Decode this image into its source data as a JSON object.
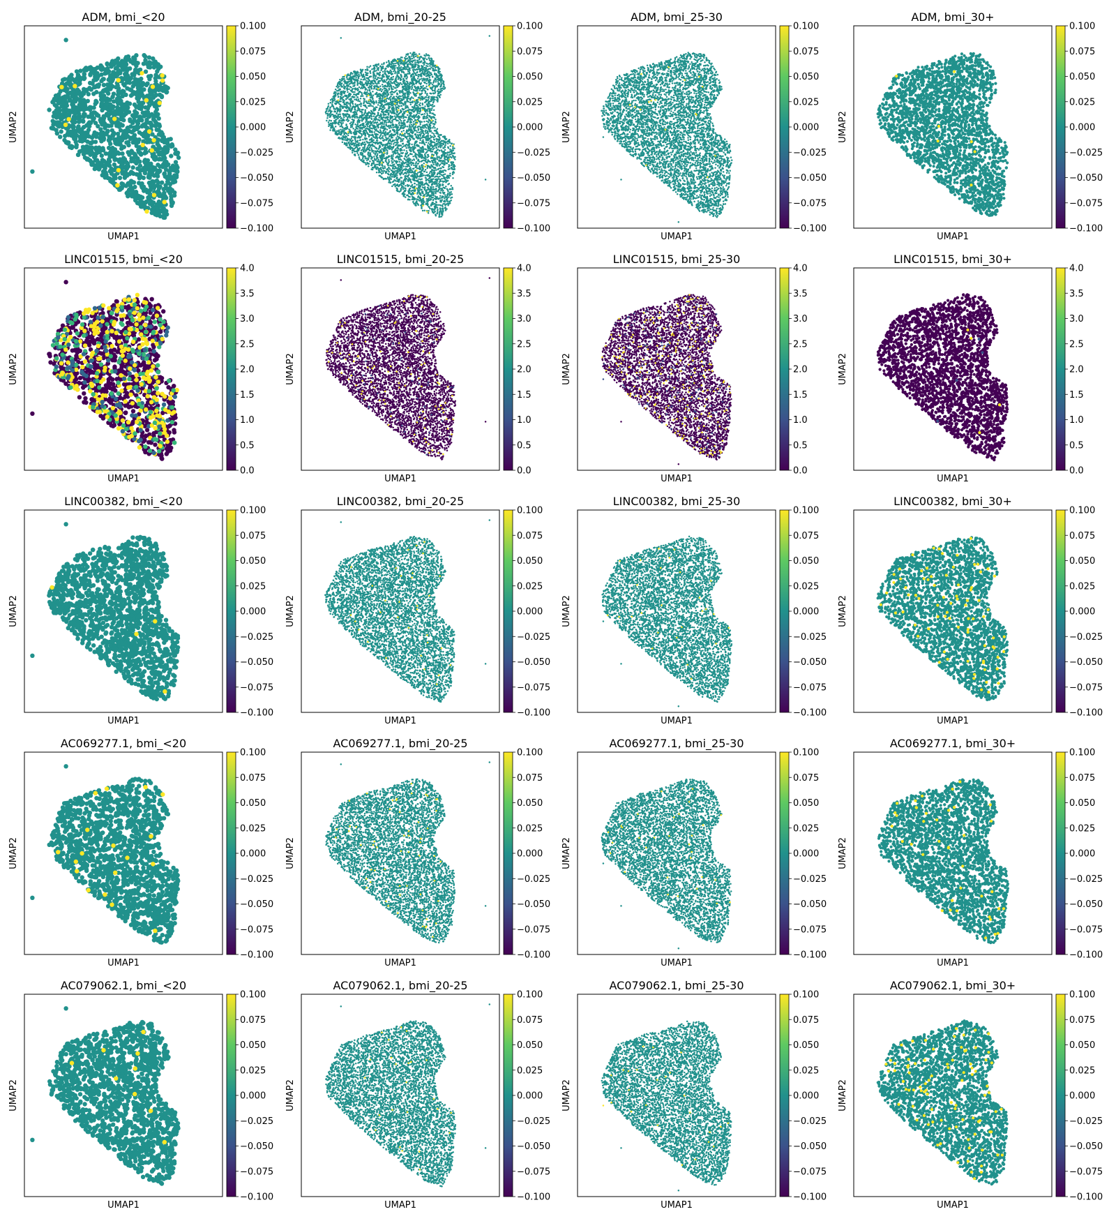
{
  "figure": {
    "genes": [
      "ADM",
      "LINC01515",
      "LINC00382",
      "AC069277.1",
      "AC079062.1"
    ],
    "groups": [
      "bmi_<20",
      "bmi_20-25",
      "bmi_25-30",
      "bmi_30+"
    ],
    "xlabel": "UMAP1",
    "ylabel": "UMAP2",
    "colormap": [
      "#440154",
      "#3b528b",
      "#21918c",
      "#5ec962",
      "#fde725"
    ],
    "base_color": "#21918c",
    "high_color": "#fde725"
  },
  "chart_data": [
    {
      "type": "scatter",
      "title": "ADM, bmi_<20",
      "xlabel": "UMAP1",
      "ylabel": "UMAP2",
      "colorbar": {
        "range": [
          -0.1,
          0.1
        ],
        "ticks": [
          "0.100",
          "0.075",
          "0.050",
          "0.025",
          "0.000",
          "−0.025",
          "−0.050",
          "−0.075",
          "−0.100"
        ]
      }
    },
    {
      "type": "scatter",
      "title": "ADM, bmi_20-25",
      "xlabel": "UMAP1",
      "ylabel": "UMAP2",
      "colorbar": {
        "range": [
          -0.1,
          0.1
        ],
        "ticks": [
          "0.100",
          "0.075",
          "0.050",
          "0.025",
          "0.000",
          "−0.025",
          "−0.050",
          "−0.075",
          "−0.100"
        ]
      }
    },
    {
      "type": "scatter",
      "title": "ADM, bmi_25-30",
      "xlabel": "UMAP1",
      "ylabel": "UMAP2",
      "colorbar": {
        "range": [
          -0.1,
          0.1
        ],
        "ticks": [
          "0.100",
          "0.075",
          "0.050",
          "0.025",
          "0.000",
          "−0.025",
          "−0.050",
          "−0.075",
          "−0.100"
        ]
      }
    },
    {
      "type": "scatter",
      "title": "ADM, bmi_30+",
      "xlabel": "UMAP1",
      "ylabel": "UMAP2",
      "colorbar": {
        "range": [
          -0.1,
          0.1
        ],
        "ticks": [
          "0.100",
          "0.075",
          "0.050",
          "0.025",
          "0.000",
          "−0.025",
          "−0.050",
          "−0.075",
          "−0.100"
        ]
      }
    },
    {
      "type": "scatter",
      "title": "LINC01515, bmi_<20",
      "xlabel": "UMAP1",
      "ylabel": "UMAP2",
      "colorbar": {
        "range": [
          0,
          4
        ],
        "ticks": [
          "4.0",
          "3.5",
          "3.0",
          "2.5",
          "2.0",
          "1.5",
          "1.0",
          "0.5",
          "0.0"
        ]
      }
    },
    {
      "type": "scatter",
      "title": "LINC01515, bmi_20-25",
      "xlabel": "UMAP1",
      "ylabel": "UMAP2",
      "colorbar": {
        "range": [
          0,
          4
        ],
        "ticks": [
          "4.0",
          "3.5",
          "3.0",
          "2.5",
          "2.0",
          "1.5",
          "1.0",
          "0.5",
          "0.0"
        ]
      }
    },
    {
      "type": "scatter",
      "title": "LINC01515, bmi_25-30",
      "xlabel": "UMAP1",
      "ylabel": "UMAP2",
      "colorbar": {
        "range": [
          0,
          4
        ],
        "ticks": [
          "4.0",
          "3.5",
          "3.0",
          "2.5",
          "2.0",
          "1.5",
          "1.0",
          "0.5",
          "0.0"
        ]
      }
    },
    {
      "type": "scatter",
      "title": "LINC01515, bmi_30+",
      "xlabel": "UMAP1",
      "ylabel": "UMAP2",
      "colorbar": {
        "range": [
          0,
          4
        ],
        "ticks": [
          "4.0",
          "3.5",
          "3.0",
          "2.5",
          "2.0",
          "1.5",
          "1.0",
          "0.5",
          "0.0"
        ]
      }
    },
    {
      "type": "scatter",
      "title": "LINC00382, bmi_<20",
      "xlabel": "UMAP1",
      "ylabel": "UMAP2",
      "colorbar": {
        "range": [
          -0.1,
          0.1
        ],
        "ticks": [
          "0.100",
          "0.075",
          "0.050",
          "0.025",
          "0.000",
          "−0.025",
          "−0.050",
          "−0.075",
          "−0.100"
        ]
      }
    },
    {
      "type": "scatter",
      "title": "LINC00382, bmi_20-25",
      "xlabel": "UMAP1",
      "ylabel": "UMAP2",
      "colorbar": {
        "range": [
          -0.1,
          0.1
        ],
        "ticks": [
          "0.100",
          "0.075",
          "0.050",
          "0.025",
          "0.000",
          "−0.025",
          "−0.050",
          "−0.075",
          "−0.100"
        ]
      }
    },
    {
      "type": "scatter",
      "title": "LINC00382, bmi_25-30",
      "xlabel": "UMAP1",
      "ylabel": "UMAP2",
      "colorbar": {
        "range": [
          -0.1,
          0.1
        ],
        "ticks": [
          "0.100",
          "0.075",
          "0.050",
          "0.025",
          "0.000",
          "−0.025",
          "−0.050",
          "−0.075",
          "−0.100"
        ]
      }
    },
    {
      "type": "scatter",
      "title": "LINC00382, bmi_30+",
      "xlabel": "UMAP1",
      "ylabel": "UMAP2",
      "colorbar": {
        "range": [
          -0.1,
          0.1
        ],
        "ticks": [
          "0.100",
          "0.075",
          "0.050",
          "0.025",
          "0.000",
          "−0.025",
          "−0.050",
          "−0.075",
          "−0.100"
        ]
      }
    },
    {
      "type": "scatter",
      "title": "AC069277.1, bmi_<20",
      "xlabel": "UMAP1",
      "ylabel": "UMAP2",
      "colorbar": {
        "range": [
          -0.1,
          0.1
        ],
        "ticks": [
          "0.100",
          "0.075",
          "0.050",
          "0.025",
          "0.000",
          "−0.025",
          "−0.050",
          "−0.075",
          "−0.100"
        ]
      }
    },
    {
      "type": "scatter",
      "title": "AC069277.1, bmi_20-25",
      "xlabel": "UMAP1",
      "ylabel": "UMAP2",
      "colorbar": {
        "range": [
          -0.1,
          0.1
        ],
        "ticks": [
          "0.100",
          "0.075",
          "0.050",
          "0.025",
          "0.000",
          "−0.025",
          "−0.050",
          "−0.075",
          "−0.100"
        ]
      }
    },
    {
      "type": "scatter",
      "title": "AC069277.1, bmi_25-30",
      "xlabel": "UMAP1",
      "ylabel": "UMAP2",
      "colorbar": {
        "range": [
          -0.1,
          0.1
        ],
        "ticks": [
          "0.100",
          "0.075",
          "0.050",
          "0.025",
          "0.000",
          "−0.025",
          "−0.050",
          "−0.075",
          "−0.100"
        ]
      }
    },
    {
      "type": "scatter",
      "title": "AC069277.1, bmi_30+",
      "xlabel": "UMAP1",
      "ylabel": "UMAP2",
      "colorbar": {
        "range": [
          -0.1,
          0.1
        ],
        "ticks": [
          "0.100",
          "0.075",
          "0.050",
          "0.025",
          "0.000",
          "−0.025",
          "−0.050",
          "−0.075",
          "−0.100"
        ]
      }
    },
    {
      "type": "scatter",
      "title": "AC079062.1, bmi_<20",
      "xlabel": "UMAP1",
      "ylabel": "UMAP2",
      "colorbar": {
        "range": [
          -0.1,
          0.1
        ],
        "ticks": [
          "0.100",
          "0.075",
          "0.050",
          "0.025",
          "0.000",
          "−0.025",
          "−0.050",
          "−0.075",
          "−0.100"
        ]
      }
    },
    {
      "type": "scatter",
      "title": "AC079062.1, bmi_20-25",
      "xlabel": "UMAP1",
      "ylabel": "UMAP2",
      "colorbar": {
        "range": [
          -0.1,
          0.1
        ],
        "ticks": [
          "0.100",
          "0.075",
          "0.050",
          "0.025",
          "0.000",
          "−0.025",
          "−0.050",
          "−0.075",
          "−0.100"
        ]
      }
    },
    {
      "type": "scatter",
      "title": "AC079062.1, bmi_25-30",
      "xlabel": "UMAP1",
      "ylabel": "UMAP2",
      "colorbar": {
        "range": [
          -0.1,
          0.1
        ],
        "ticks": [
          "0.100",
          "0.075",
          "0.050",
          "0.025",
          "0.000",
          "−0.025",
          "−0.050",
          "−0.075",
          "−0.100"
        ]
      }
    },
    {
      "type": "scatter",
      "title": "AC079062.1, bmi_30+",
      "xlabel": "UMAP1",
      "ylabel": "UMAP2",
      "colorbar": {
        "range": [
          -0.1,
          0.1
        ],
        "ticks": [
          "0.100",
          "0.075",
          "0.050",
          "0.025",
          "0.000",
          "−0.025",
          "−0.050",
          "−0.075",
          "−0.100"
        ]
      }
    }
  ]
}
